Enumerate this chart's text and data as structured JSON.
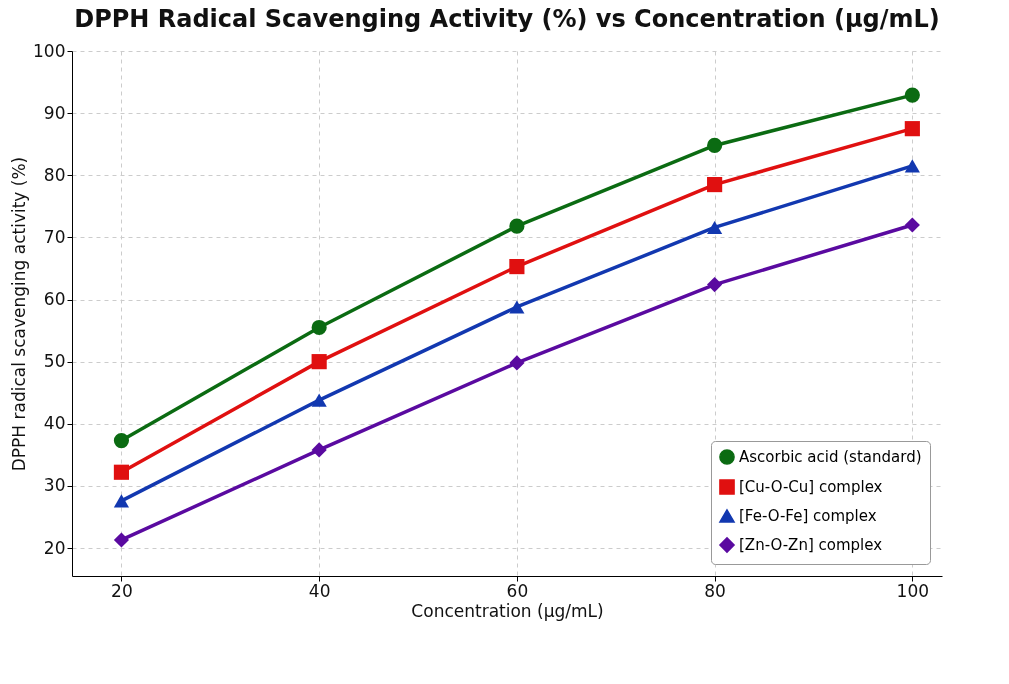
{
  "chart_data": {
    "type": "line",
    "title": "DPPH Radical Scavenging Activity (%) vs Concentration (µg/mL)",
    "xlabel": "Concentration (µg/mL)",
    "ylabel": "DPPH radical scavenging activity (%)",
    "x": [
      20,
      40,
      60,
      80,
      100
    ],
    "series": [
      {
        "name": "Ascorbic acid (standard)",
        "color": "#0b6b12",
        "marker": "circle",
        "values": [
          37.3,
          55.5,
          71.8,
          84.8,
          92.9
        ]
      },
      {
        "name": "[Cu-O-Cu] complex",
        "color": "#e01010",
        "marker": "square",
        "values": [
          32.2,
          50,
          65.3,
          78.5,
          87.5
        ]
      },
      {
        "name": "[Fe-O-Fe] complex",
        "color": "#1238b0",
        "marker": "triangle",
        "values": [
          27.6,
          43.8,
          58.8,
          71.6,
          81.5
        ]
      },
      {
        "name": "[Zn-O-Zn] complex",
        "color": "#5a0aa0",
        "marker": "diamond",
        "values": [
          21.3,
          35.8,
          49.8,
          62.4,
          72
        ]
      }
    ],
    "xlim": [
      15,
      103
    ],
    "xticks": [
      20,
      40,
      60,
      80,
      100
    ],
    "ylim": [
      15.5,
      100
    ],
    "yticks": [
      20,
      30,
      40,
      50,
      60,
      70,
      80,
      90,
      100
    ],
    "grid": true,
    "legend": "bottom right",
    "line_style": "solid"
  }
}
